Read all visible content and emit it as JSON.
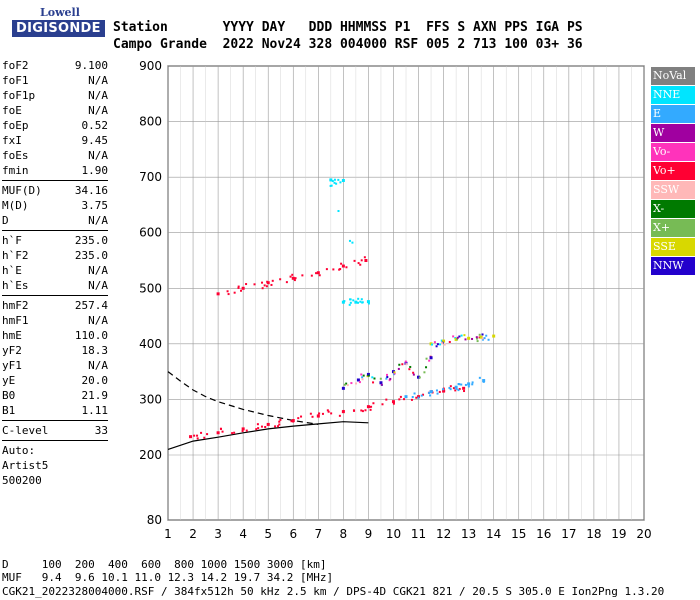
{
  "logo": {
    "line1": "Lowell",
    "line2": "DIGISONDE"
  },
  "header": {
    "row1": "Station       YYYY DAY   DDD HHMMSS P1  FFS S AXN PPS IGA PS",
    "row2": "Campo Grande  2022 Nov24 328 004000 RSF 005 2 713 100 03+ 36"
  },
  "params": [
    {
      "label": "foF2",
      "value": "9.100"
    },
    {
      "label": "foF1",
      "value": "N/A"
    },
    {
      "label": "foF1p",
      "value": "N/A"
    },
    {
      "label": "foE",
      "value": "N/A"
    },
    {
      "label": "foEp",
      "value": "0.52"
    },
    {
      "label": "fxI",
      "value": "9.45"
    },
    {
      "label": "foEs",
      "value": "N/A"
    },
    {
      "label": "fmin",
      "value": "1.90"
    },
    {
      "sep": true
    },
    {
      "label": "MUF(D)",
      "value": "34.16"
    },
    {
      "label": "M(D)",
      "value": "3.75"
    },
    {
      "label": "D",
      "value": "N/A"
    },
    {
      "sep": true
    },
    {
      "label": "h`F",
      "value": "235.0"
    },
    {
      "label": "h`F2",
      "value": "235.0"
    },
    {
      "label": "h`E",
      "value": "N/A"
    },
    {
      "label": "h`Es",
      "value": "N/A"
    },
    {
      "sep": true
    },
    {
      "label": "hmF2",
      "value": "257.4"
    },
    {
      "label": "hmF1",
      "value": "N/A"
    },
    {
      "label": "hmE",
      "value": "110.0"
    },
    {
      "label": "yF2",
      "value": "18.3"
    },
    {
      "label": "yF1",
      "value": "N/A"
    },
    {
      "label": "yE",
      "value": "20.0"
    },
    {
      "label": "B0",
      "value": "21.9"
    },
    {
      "label": "B1",
      "value": "1.11"
    },
    {
      "sep": true
    },
    {
      "label": "C-level",
      "value": "33"
    },
    {
      "sep": true
    },
    {
      "text": "Auto:"
    },
    {
      "text": "Artist5"
    },
    {
      "text": "500200"
    }
  ],
  "legend": [
    {
      "label": "NoVal",
      "color": "#808080"
    },
    {
      "label": "NNE",
      "color": "#00e5ff"
    },
    {
      "label": "E",
      "color": "#33aaff"
    },
    {
      "label": "W",
      "color": "#a000a0"
    },
    {
      "label": "Vo-",
      "color": "#ff33bb"
    },
    {
      "label": "Vo+",
      "color": "#ff0033"
    },
    {
      "label": "SSW",
      "color": "#ffb8b8"
    },
    {
      "label": "X-",
      "color": "#007a00"
    },
    {
      "label": "X+",
      "color": "#77bb55"
    },
    {
      "label": "SSE",
      "color": "#d8d800"
    },
    {
      "label": "NNW",
      "color": "#2200cc"
    }
  ],
  "footer": {
    "line1": "D     100  200  400  600  800 1000 1500 3000 [km]",
    "line2": "MUF   9.4  9.6 10.1 11.0 12.3 14.2 19.7 34.2 [MHz]",
    "line3": "CGK21_2022328004000.RSF / 384fx512h 50 kHz 2.5 km / DPS-4D CGK21 821 / 20.5 S 305.0 E Ion2Png 1.3.20"
  },
  "chart_data": {
    "type": "scatter",
    "title": "",
    "xlabel": "",
    "ylabel": "",
    "xlim": [
      1,
      20
    ],
    "ylim": [
      80,
      900
    ],
    "x_ticks": [
      1,
      2,
      3,
      4,
      5,
      6,
      7,
      8,
      9,
      10,
      11,
      12,
      13,
      14,
      15,
      16,
      17,
      18,
      19,
      20
    ],
    "y_ticks": [
      80,
      200,
      300,
      400,
      500,
      600,
      700,
      800,
      900
    ],
    "grid": true,
    "traces": [
      {
        "name": "o-trace",
        "color": "#ff0033",
        "points": [
          [
            1.9,
            233
          ],
          [
            3,
            240
          ],
          [
            4,
            247
          ],
          [
            5,
            255
          ],
          [
            6,
            262
          ],
          [
            7,
            270
          ],
          [
            8,
            278
          ],
          [
            9,
            287
          ],
          [
            10,
            296
          ],
          [
            11,
            305
          ],
          [
            12,
            315
          ],
          [
            12.8,
            320
          ]
        ]
      },
      {
        "name": "x-trace",
        "color": "#33aaff",
        "points": [
          [
            10.5,
            305
          ],
          [
            11.5,
            314
          ],
          [
            12.5,
            322
          ],
          [
            13,
            328
          ],
          [
            13.6,
            334
          ]
        ]
      },
      {
        "name": "f2-spread",
        "color": "#2200cc",
        "points": [
          [
            8,
            320
          ],
          [
            8.6,
            335
          ],
          [
            9,
            345
          ],
          [
            9.5,
            330
          ],
          [
            10,
            350
          ],
          [
            10.5,
            365
          ],
          [
            11,
            340
          ],
          [
            11.5,
            375
          ]
        ]
      },
      {
        "name": "upper-band",
        "color": "#d8d800",
        "points": [
          [
            11.5,
            400
          ],
          [
            12,
            405
          ],
          [
            12.5,
            408
          ],
          [
            13,
            410
          ],
          [
            13.5,
            412
          ],
          [
            14,
            414
          ]
        ]
      },
      {
        "name": "second-hop",
        "color": "#ff0033",
        "points": [
          [
            3,
            490
          ],
          [
            4,
            500
          ],
          [
            5,
            510
          ],
          [
            6,
            518
          ],
          [
            7,
            528
          ],
          [
            8,
            540
          ],
          [
            8.9,
            550
          ]
        ]
      },
      {
        "name": "sparse-high",
        "color": "#00e5ff",
        "points": [
          [
            8,
            475
          ],
          [
            8.5,
            475
          ],
          [
            9,
            476
          ],
          [
            7.5,
            695
          ],
          [
            8,
            694
          ]
        ]
      }
    ],
    "curves": [
      {
        "name": "virtual-height-profile",
        "style": "dashed",
        "color": "#000",
        "points": [
          [
            1,
            350
          ],
          [
            1.5,
            333
          ],
          [
            2,
            317
          ],
          [
            2.5,
            305
          ],
          [
            3,
            296
          ],
          [
            4,
            282
          ],
          [
            5,
            271
          ],
          [
            6,
            262
          ],
          [
            7,
            255
          ]
        ]
      },
      {
        "name": "true-height-profile",
        "style": "solid",
        "color": "#000",
        "points": [
          [
            1,
            210
          ],
          [
            2,
            225
          ],
          [
            3,
            232
          ],
          [
            4,
            240
          ],
          [
            5,
            247
          ],
          [
            6,
            252
          ],
          [
            7,
            256
          ],
          [
            8,
            260
          ],
          [
            9,
            258
          ]
        ]
      }
    ]
  }
}
